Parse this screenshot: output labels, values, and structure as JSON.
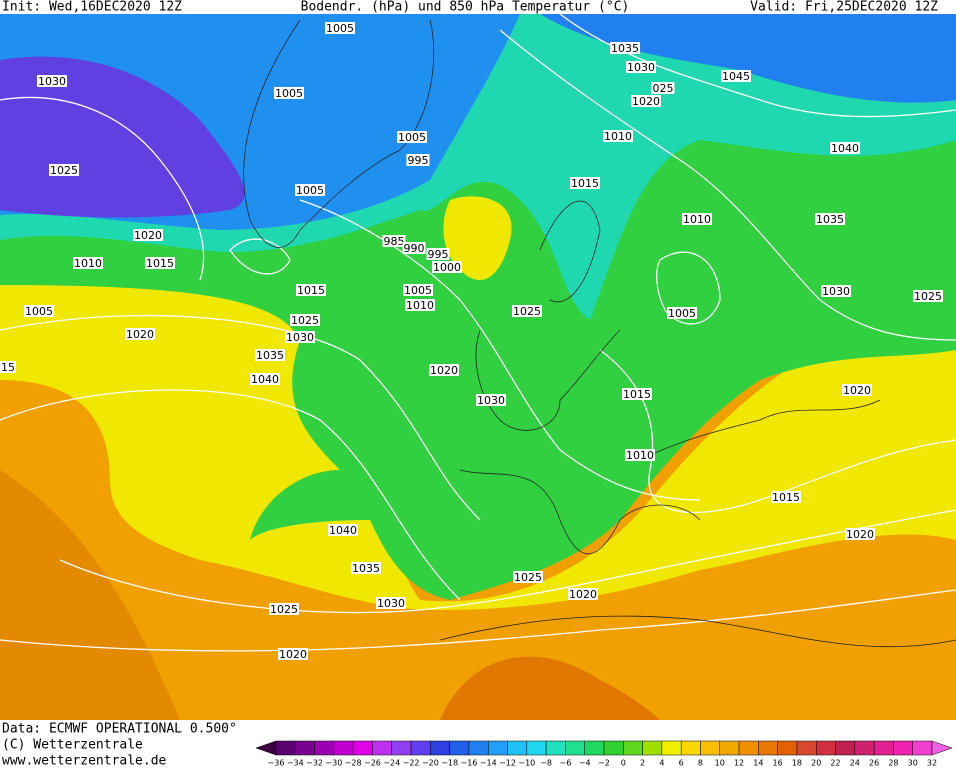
{
  "header": {
    "init": "Init: Wed,16DEC2020 12Z",
    "title": "Bodendr. (hPa) und 850 hPa Temperatur (°C)",
    "valid": "Valid: Fri,25DEC2020 12Z"
  },
  "isobar_labels": [
    "1005",
    "1035",
    "1030",
    "025",
    "1045",
    "1020",
    "1030",
    "1005",
    "1010",
    "1040",
    "1005",
    "995",
    "1025",
    "1005",
    "1015",
    "1010",
    "1035",
    "985",
    "990",
    "995",
    "1000",
    "1020",
    "1010",
    "1015",
    "1030",
    "1025",
    "1015",
    "1005",
    "1010",
    "1025",
    "1005",
    "1005",
    "1025",
    "1030",
    "1020",
    "1035",
    "1020",
    "1040",
    "1015",
    "1020",
    "1030",
    "1010",
    "1015",
    "1040",
    "1020",
    "1035",
    "1025",
    "1020",
    "1030",
    "1025",
    "1020",
    "15"
  ],
  "footer": {
    "data": "Data: ECMWF OPERATIONAL 0.500°",
    "copyright": "(C) Wetterzentrale",
    "url": "www.wetterzentrale.de"
  },
  "colorbar": {
    "labels": [
      "−36",
      "−34",
      "−32",
      "−30",
      "−28",
      "−26",
      "−24",
      "−22",
      "−20",
      "−18",
      "−16",
      "−14",
      "−12",
      "−10",
      "−8",
      "−6",
      "−4",
      "−2",
      "0",
      "2",
      "4",
      "6",
      "8",
      "10",
      "12",
      "14",
      "16",
      "18",
      "20",
      "22",
      "24",
      "26",
      "28",
      "30",
      "32"
    ],
    "colors": [
      "#3a0040",
      "#5a0070",
      "#7a0090",
      "#9a00b0",
      "#c000d0",
      "#e000e8",
      "#c030f0",
      "#9040f0",
      "#6040f0",
      "#3040e0",
      "#2060e8",
      "#2080f0",
      "#20a0f8",
      "#20c0f8",
      "#20d8f0",
      "#20e0c0",
      "#20e090",
      "#20d860",
      "#30d030",
      "#60d820",
      "#a0e000",
      "#f0f000",
      "#f8d800",
      "#f8c000",
      "#f0a800",
      "#f09000",
      "#e87800",
      "#e06000",
      "#d84830",
      "#d03040",
      "#c02050",
      "#d02070",
      "#e02090",
      "#f020b0",
      "#f040d0",
      "#f060e0"
    ]
  }
}
